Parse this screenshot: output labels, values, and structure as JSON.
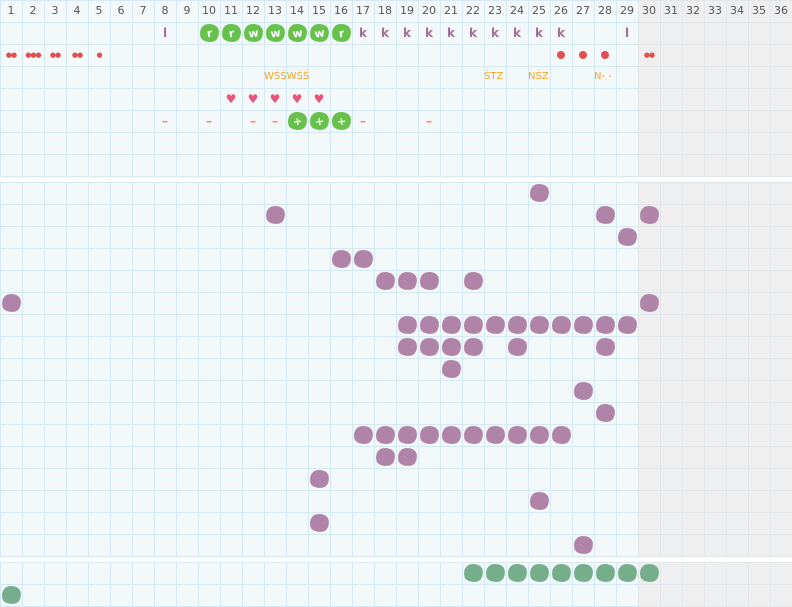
{
  "columns": [
    "1",
    "2",
    "3",
    "4",
    "5",
    "6",
    "7",
    "8",
    "9",
    "10",
    "11",
    "12",
    "13",
    "14",
    "15",
    "16",
    "17",
    "18",
    "19",
    "20",
    "21",
    "22",
    "23",
    "24",
    "25",
    "26",
    "27",
    "28",
    "29",
    "30",
    "31",
    "32",
    "33",
    "34",
    "35",
    "36"
  ],
  "shaded_from_column": 30,
  "colors": {
    "green": "#66c24a",
    "purple": "#b084a8",
    "teal": "#76ad8a",
    "red": "#e05050",
    "orange": "#f5a623",
    "pink": "#e8547a",
    "grid": "#d4e9f3"
  },
  "top_section": {
    "row1_letters": [
      {
        "col": 8,
        "type": "letter",
        "text": "l"
      },
      {
        "col": 10,
        "type": "green-blob",
        "text": "r"
      },
      {
        "col": 11,
        "type": "green-blob",
        "text": "r"
      },
      {
        "col": 12,
        "type": "green-blob",
        "text": "w"
      },
      {
        "col": 13,
        "type": "green-blob",
        "text": "w"
      },
      {
        "col": 14,
        "type": "green-blob",
        "text": "w"
      },
      {
        "col": 15,
        "type": "green-blob",
        "text": "w"
      },
      {
        "col": 16,
        "type": "green-blob",
        "text": "r"
      },
      {
        "col": 17,
        "type": "letter",
        "text": "k"
      },
      {
        "col": 18,
        "type": "letter",
        "text": "k"
      },
      {
        "col": 19,
        "type": "letter",
        "text": "k"
      },
      {
        "col": 20,
        "type": "letter",
        "text": "k"
      },
      {
        "col": 21,
        "type": "letter",
        "text": "k"
      },
      {
        "col": 22,
        "type": "letter",
        "text": "k"
      },
      {
        "col": 23,
        "type": "letter",
        "text": "k"
      },
      {
        "col": 24,
        "type": "letter",
        "text": "k"
      },
      {
        "col": 25,
        "type": "letter",
        "text": "k"
      },
      {
        "col": 26,
        "type": "letter",
        "text": "k"
      },
      {
        "col": 29,
        "type": "letter",
        "text": "l"
      }
    ],
    "row2_flow": [
      {
        "col": 1,
        "type": "drops",
        "text": "●●",
        "count": 2
      },
      {
        "col": 2,
        "type": "drops",
        "text": "●●●",
        "count": 3
      },
      {
        "col": 3,
        "type": "drops",
        "text": "●●",
        "count": 2
      },
      {
        "col": 4,
        "type": "drops",
        "text": "●●",
        "count": 2
      },
      {
        "col": 5,
        "type": "drops",
        "text": "●",
        "count": 1
      },
      {
        "col": 26,
        "type": "dot"
      },
      {
        "col": 27,
        "type": "dot"
      },
      {
        "col": 28,
        "type": "dot"
      },
      {
        "col": 30,
        "type": "drops",
        "text": "●●",
        "count": 2
      }
    ],
    "row3_notes": [
      {
        "col": 13,
        "text": "WŚŚWŚŚ"
      },
      {
        "col": 23,
        "text": "ŚTZ"
      },
      {
        "col": 25,
        "text": "NŚZ"
      },
      {
        "col": 28,
        "text": "N- -"
      }
    ],
    "row4_hearts": [
      11,
      12,
      13,
      14,
      15
    ],
    "row5_marks": [
      {
        "col": 8,
        "type": "dash",
        "text": "–"
      },
      {
        "col": 10,
        "type": "dash",
        "text": "–"
      },
      {
        "col": 12,
        "type": "dash",
        "text": "–"
      },
      {
        "col": 13,
        "type": "dash",
        "text": "–"
      },
      {
        "col": 14,
        "type": "green-blob",
        "text": "+"
      },
      {
        "col": 15,
        "type": "green-blob",
        "text": "+"
      },
      {
        "col": 16,
        "type": "green-blob",
        "text": "+"
      },
      {
        "col": 17,
        "type": "dash",
        "text": "–"
      },
      {
        "col": 20,
        "type": "dash",
        "text": "–"
      }
    ]
  },
  "middle_section_rows": [
    [
      25
    ],
    [
      13,
      28,
      30
    ],
    [
      29
    ],
    [
      16,
      17
    ],
    [
      18,
      19,
      20,
      22
    ],
    [
      1,
      30
    ],
    [
      19,
      20,
      21,
      22,
      23,
      24,
      25,
      26,
      27,
      28,
      29
    ],
    [
      19,
      20,
      21,
      22,
      24,
      28
    ],
    [
      21
    ],
    [
      27
    ],
    [
      28
    ],
    [
      17,
      18,
      19,
      20,
      21,
      22,
      23,
      24,
      25,
      26
    ],
    [
      18,
      19
    ],
    [
      15
    ],
    [
      25
    ],
    [
      15
    ],
    [
      27
    ]
  ],
  "bottom_section_rows": [
    [
      22,
      23,
      24,
      25,
      26,
      27,
      28,
      29,
      30
    ],
    [
      1
    ]
  ]
}
